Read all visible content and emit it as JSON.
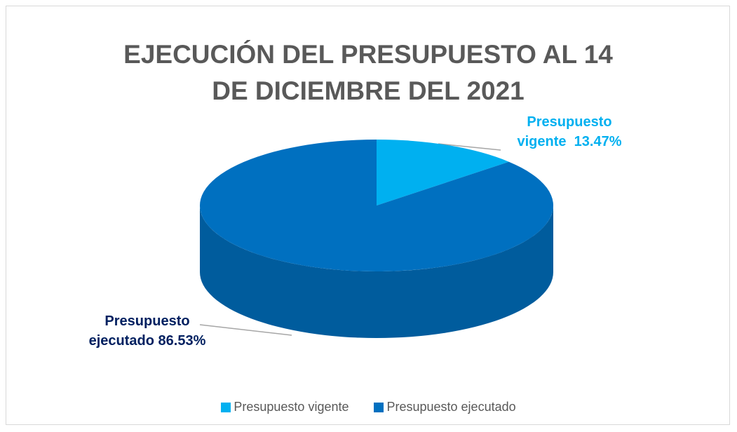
{
  "chart_data": {
    "type": "pie",
    "title": "EJECUCIÓN DEL PRESUPUESTO AL 14 DE DICIEMBRE DEL 2021",
    "categories": [
      "Presupuesto vigente",
      "Presupuesto ejecutado"
    ],
    "values": [
      13.47,
      86.53
    ],
    "value_labels": [
      "13.47%",
      "86.53%"
    ],
    "colors": [
      "#00b0f0",
      "#0070c0"
    ],
    "legend": "bottom"
  }
}
